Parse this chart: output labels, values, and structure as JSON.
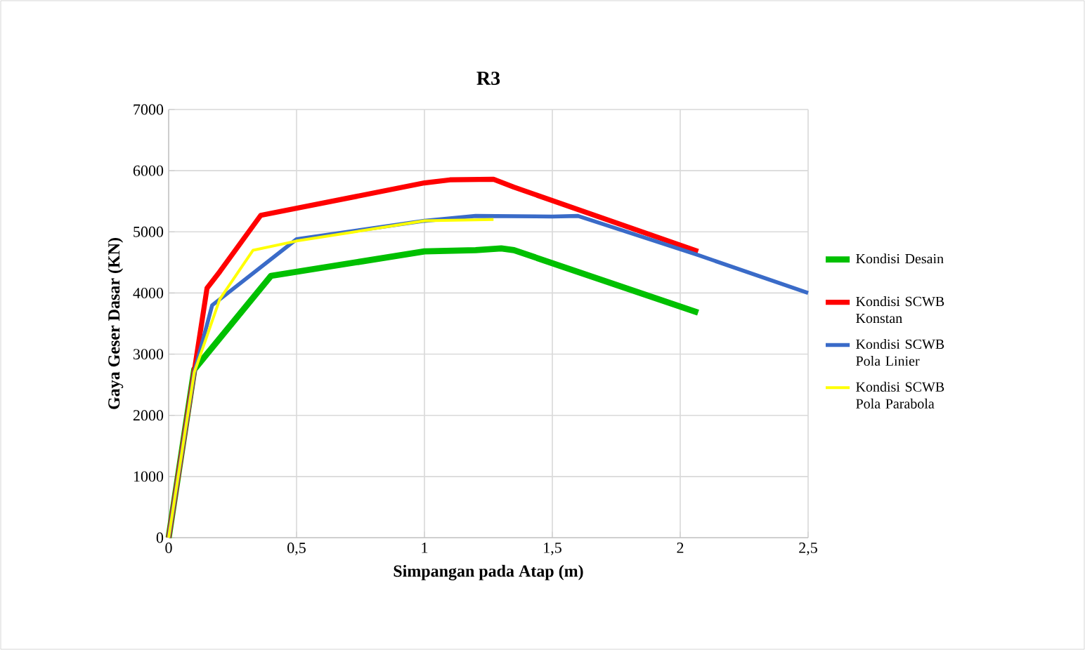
{
  "chart_data": {
    "type": "line",
    "title": "R3",
    "xlabel": "Simpangan pada Atap (m)",
    "ylabel": "Gaya Geser Dasar (KN)",
    "xlim": [
      0,
      2.5
    ],
    "ylim": [
      0,
      7000
    ],
    "xticks": [
      0,
      {
        "value": 0.5,
        "label": "0,5"
      },
      1,
      {
        "value": 1.5,
        "label": "1,5"
      },
      2,
      {
        "value": 2.5,
        "label": "2,5"
      }
    ],
    "yticks": [
      0,
      1000,
      2000,
      3000,
      4000,
      5000,
      6000,
      7000
    ],
    "grid": true,
    "legend": "right",
    "marker": "none",
    "line_style": "solid",
    "series": [
      {
        "name": "Kondisi Desain",
        "color": "#00c000",
        "x": [
          0,
          0.1,
          0.4,
          1,
          1.2,
          1.3,
          1.35,
          2.07
        ],
        "values": [
          0,
          2750,
          4280,
          4680,
          4700,
          4730,
          4700,
          3680
        ]
      },
      {
        "name": "Kondisi SCWB Konstan",
        "color": "#ff0000",
        "x": [
          0,
          0.15,
          0.2,
          0.36,
          1,
          1.1,
          1.27,
          1.35,
          2.07
        ],
        "values": [
          0,
          4080,
          4350,
          5270,
          5800,
          5850,
          5860,
          5730,
          4680
        ]
      },
      {
        "name": "Kondisi SCWB Pola Linier",
        "color": "#3a6bc8",
        "x": [
          0,
          0.1,
          0.17,
          0.5,
          1,
          1.2,
          1.5,
          1.6,
          2.07,
          2.5
        ],
        "values": [
          0,
          2700,
          3800,
          4880,
          5180,
          5260,
          5250,
          5260,
          4620,
          4000
        ]
      },
      {
        "name": "Kondisi SCWB Pola Parabola",
        "color": "#ffff00",
        "x": [
          0,
          0.1,
          0.2,
          0.33,
          0.5,
          1,
          1.27
        ],
        "values": [
          0,
          2700,
          3900,
          4700,
          4850,
          5180,
          5200
        ]
      }
    ]
  }
}
